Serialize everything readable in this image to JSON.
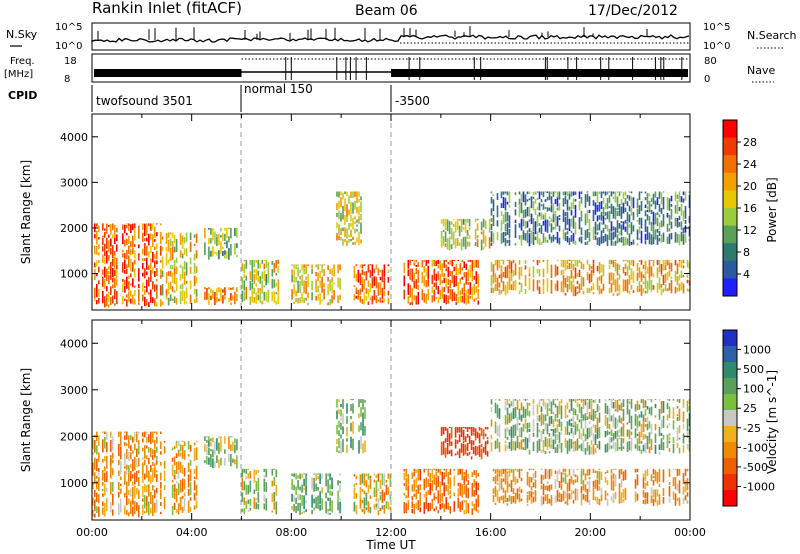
{
  "header": {
    "station": "Rankin Inlet (fitACF)",
    "beam": "Beam 06",
    "date": "17/Dec/2012"
  },
  "params_panel": {
    "nsky_label": "N.Sky",
    "nsky_ticks": [
      "10^5",
      "10^0"
    ],
    "nsearch_label": "N.Search",
    "nsearch_ticks": [
      "10^5",
      "10^0"
    ],
    "freq_label": "Freq.",
    "freq_unit": "[MHz]",
    "freq_ticks": [
      "18",
      "8"
    ],
    "nave_label": "Nave",
    "nave_ticks": [
      "80",
      "0"
    ],
    "cpid_label": "CPID",
    "cpid_segments": [
      {
        "start_h": 0,
        "end_h": 6,
        "label": "twofsound 3501"
      },
      {
        "start_h": 6,
        "end_h": 12,
        "label": "normal 150"
      },
      {
        "start_h": 12,
        "end_h": 24,
        "label": "-3500"
      }
    ]
  },
  "power_colorbar": {
    "title": "Power [dB]",
    "ticks": [
      "28",
      "24",
      "20",
      "16",
      "12",
      "8",
      "4"
    ],
    "colors": [
      "#ff0000",
      "#f03a00",
      "#f07000",
      "#f0a000",
      "#e8c800",
      "#9ccc40",
      "#5aa05a",
      "#2e7a6e",
      "#2a5aa0",
      "#2020ff"
    ]
  },
  "velocity_colorbar": {
    "title": "Velocity [m s^-1]",
    "ticks": [
      "1000",
      "500",
      "100",
      "25",
      "-25",
      "-100",
      "-500",
      "-1000"
    ],
    "colors": [
      "#2030c0",
      "#2e60a8",
      "#2e8c6a",
      "#5aa05a",
      "#7ac040",
      "#c8c8c8",
      "#f0b020",
      "#f08a00",
      "#f06000",
      "#f03000",
      "#ff0000"
    ]
  },
  "chart_data": [
    {
      "type": "heatmap",
      "name": "power",
      "ylabel": "Slant Range [km]",
      "ylim": [
        200,
        4500
      ],
      "yticks": [
        1000,
        2000,
        3000,
        4000
      ],
      "xlim_hours": [
        0,
        24
      ],
      "mode_change_hours": [
        6,
        12
      ],
      "echo_regions": [
        {
          "t0": 0.0,
          "t1": 2.8,
          "r0": 250,
          "r1": 2100,
          "value_db": 26
        },
        {
          "t0": 2.8,
          "t1": 4.2,
          "r0": 300,
          "r1": 1900,
          "value_db": 20
        },
        {
          "t0": 4.5,
          "t1": 5.8,
          "r0": 1300,
          "r1": 2000,
          "value_db": 14
        },
        {
          "t0": 4.5,
          "t1": 5.8,
          "r0": 300,
          "r1": 700,
          "value_db": 24
        },
        {
          "t0": 6.0,
          "t1": 7.5,
          "r0": 300,
          "r1": 1300,
          "value_db": 18
        },
        {
          "t0": 8.0,
          "t1": 10.0,
          "r0": 300,
          "r1": 1200,
          "value_db": 20
        },
        {
          "t0": 9.8,
          "t1": 11.0,
          "r0": 1600,
          "r1": 2800,
          "value_db": 18
        },
        {
          "t0": 10.5,
          "t1": 12.0,
          "r0": 300,
          "r1": 1200,
          "value_db": 26
        },
        {
          "t0": 12.5,
          "t1": 15.5,
          "r0": 300,
          "r1": 1300,
          "value_db": 26
        },
        {
          "t0": 14.0,
          "t1": 16.0,
          "r0": 1500,
          "r1": 2200,
          "value_db": 18
        },
        {
          "t0": 16.0,
          "t1": 24.0,
          "r0": 500,
          "r1": 1300,
          "value_db": 22
        },
        {
          "t0": 16.0,
          "t1": 24.0,
          "r0": 1600,
          "r1": 2800,
          "value_db": 10
        }
      ]
    },
    {
      "type": "heatmap",
      "name": "velocity",
      "ylabel": "Slant Range [km]",
      "xlabel": "Time UT",
      "ylim": [
        200,
        4500
      ],
      "yticks": [
        1000,
        2000,
        3000,
        4000
      ],
      "xlim_hours": [
        0,
        24
      ],
      "xticks": [
        "00:00",
        "04:00",
        "08:00",
        "12:00",
        "16:00",
        "20:00",
        "00:00"
      ],
      "mode_change_hours": [
        6,
        12
      ],
      "echo_regions": [
        {
          "t0": 0.0,
          "t1": 2.8,
          "r0": 250,
          "r1": 2100,
          "value_ms": -200
        },
        {
          "t0": 2.8,
          "t1": 4.2,
          "r0": 300,
          "r1": 1900,
          "value_ms": -150
        },
        {
          "t0": 4.5,
          "t1": 5.8,
          "r0": 1300,
          "r1": 2000,
          "value_ms": 100
        },
        {
          "t0": 6.0,
          "t1": 7.5,
          "r0": 300,
          "r1": 1300,
          "value_ms": 50
        },
        {
          "t0": 8.0,
          "t1": 10.0,
          "r0": 300,
          "r1": 1200,
          "value_ms": 200
        },
        {
          "t0": 9.8,
          "t1": 11.0,
          "r0": 1600,
          "r1": 2800,
          "value_ms": 150
        },
        {
          "t0": 10.5,
          "t1": 12.0,
          "r0": 300,
          "r1": 1200,
          "value_ms": -100
        },
        {
          "t0": 12.5,
          "t1": 15.5,
          "r0": 300,
          "r1": 1300,
          "value_ms": -300
        },
        {
          "t0": 14.0,
          "t1": 16.0,
          "r0": 1500,
          "r1": 2200,
          "value_ms": -600
        },
        {
          "t0": 16.0,
          "t1": 24.0,
          "r0": 500,
          "r1": 1300,
          "value_ms": -200
        },
        {
          "t0": 16.0,
          "t1": 24.0,
          "r0": 1600,
          "r1": 2800,
          "value_ms": 100
        }
      ]
    }
  ]
}
